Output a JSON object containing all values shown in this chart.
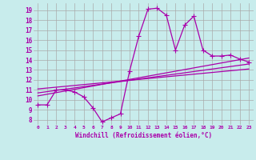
{
  "background_color": "#c8ecec",
  "line_color": "#aa00aa",
  "grid_color": "#aaaaaa",
  "axis_label_color": "#aa00aa",
  "tick_label_color": "#aa00aa",
  "xlabel": "Windchill (Refroidissement éolien,°C)",
  "xlim": [
    -0.5,
    23.5
  ],
  "ylim": [
    7.5,
    19.7
  ],
  "yticks": [
    8,
    9,
    10,
    11,
    12,
    13,
    14,
    15,
    16,
    17,
    18,
    19
  ],
  "xticks": [
    0,
    1,
    2,
    3,
    4,
    5,
    6,
    7,
    8,
    9,
    10,
    11,
    12,
    13,
    14,
    15,
    16,
    17,
    18,
    19,
    20,
    21,
    22,
    23
  ],
  "series_main": {
    "x": [
      0,
      1,
      2,
      3,
      4,
      5,
      6,
      7,
      8,
      9,
      10,
      11,
      12,
      13,
      14,
      15,
      16,
      17,
      18,
      19,
      20,
      21,
      22,
      23
    ],
    "y": [
      9.5,
      9.5,
      11.0,
      11.0,
      10.8,
      10.3,
      9.2,
      7.8,
      8.2,
      8.6,
      12.9,
      16.4,
      19.1,
      19.2,
      18.5,
      15.0,
      17.5,
      18.4,
      15.0,
      14.4,
      14.4,
      14.5,
      14.1,
      13.8
    ]
  },
  "series_lines": [
    {
      "x": [
        0,
        23
      ],
      "y": [
        10.4,
        14.2
      ]
    },
    {
      "x": [
        0,
        23
      ],
      "y": [
        10.7,
        13.6
      ]
    },
    {
      "x": [
        0,
        23
      ],
      "y": [
        11.1,
        13.1
      ]
    }
  ],
  "marker": "+",
  "markersize": 4,
  "markeredgewidth": 0.8,
  "linewidth": 0.9
}
